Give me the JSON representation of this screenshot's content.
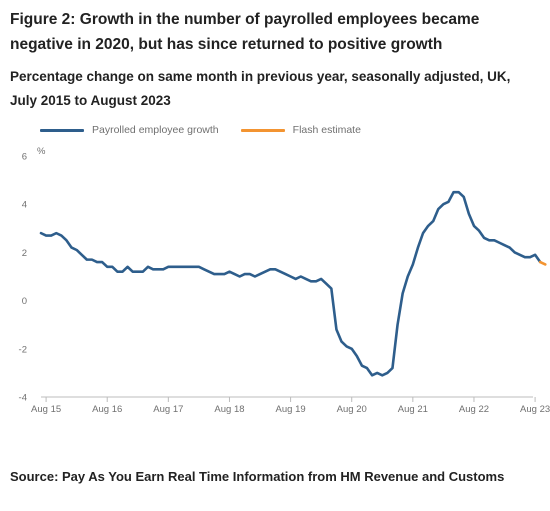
{
  "figure": {
    "title": "Figure 2: Growth in the number of payrolled employees became negative in 2020, but has since returned to positive growth",
    "subtitle": "Percentage change on same month in previous year, seasonally adjusted, UK, July 2015 to August 2023",
    "source": "Source: Pay As You Earn Real Time Information from HM Revenue and Customs"
  },
  "chart_data": {
    "type": "line",
    "title": "Figure 2: Growth in the number of payrolled employees became negative in 2020, but has since returned to positive growth",
    "subtitle": "Percentage change on same month in previous year, seasonally adjusted, UK, July 2015 to August 2023",
    "ylabel": "%",
    "xlabel": "",
    "ylim": [
      -4,
      6
    ],
    "yticks": [
      6,
      4,
      2,
      0,
      -2,
      -4
    ],
    "xticks": [
      "Aug 15",
      "Aug 16",
      "Aug 17",
      "Aug 18",
      "Aug 19",
      "Aug 20",
      "Aug 21",
      "Aug 22",
      "Aug 23"
    ],
    "grid": false,
    "legend_position": "top",
    "x_start": "Jul 2015",
    "x_end": "Aug 2023",
    "series": [
      {
        "name": "Payrolled employee growth",
        "color": "#2e5e8c",
        "x_start": "Jul 2015",
        "x_end": "Jul 2023",
        "values": [
          2.8,
          2.7,
          2.7,
          2.8,
          2.7,
          2.5,
          2.2,
          2.1,
          1.9,
          1.7,
          1.7,
          1.6,
          1.6,
          1.4,
          1.4,
          1.2,
          1.2,
          1.4,
          1.2,
          1.2,
          1.2,
          1.4,
          1.3,
          1.3,
          1.3,
          1.4,
          1.4,
          1.4,
          1.4,
          1.4,
          1.4,
          1.4,
          1.3,
          1.2,
          1.1,
          1.1,
          1.1,
          1.2,
          1.1,
          1.0,
          1.1,
          1.1,
          1.0,
          1.1,
          1.2,
          1.3,
          1.3,
          1.2,
          1.1,
          1.0,
          0.9,
          1.0,
          0.9,
          0.8,
          0.8,
          0.9,
          0.7,
          0.5,
          -1.2,
          -1.7,
          -1.9,
          -2.0,
          -2.3,
          -2.7,
          -2.8,
          -3.1,
          -3.0,
          -3.1,
          -3.0,
          -2.8,
          -1.0,
          0.3,
          1.0,
          1.5,
          2.2,
          2.8,
          3.1,
          3.3,
          3.8,
          4.0,
          4.1,
          4.5,
          4.5,
          4.3,
          3.6,
          3.1,
          2.9,
          2.6,
          2.5,
          2.5,
          2.4,
          2.3,
          2.2,
          2.0,
          1.9,
          1.8,
          1.8,
          1.9,
          1.6
        ]
      },
      {
        "name": "Flash estimate",
        "color": "#f39431",
        "x_start": "Jul 2023",
        "x_end": "Aug 2023",
        "values": [
          1.6,
          1.5
        ]
      }
    ]
  }
}
